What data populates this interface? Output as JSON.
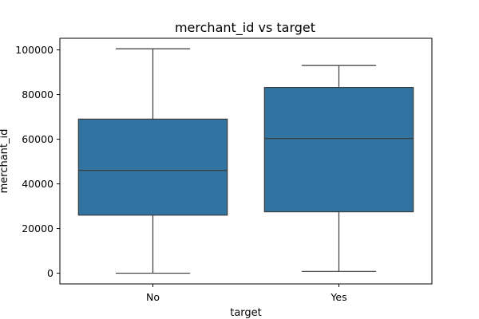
{
  "chart_data": {
    "type": "box",
    "title": "merchant_id vs target",
    "xlabel": "target",
    "ylabel": "merchant_id",
    "categories": [
      "No",
      "Yes"
    ],
    "yticks": [
      0,
      20000,
      40000,
      60000,
      80000,
      100000
    ],
    "ytick_labels": [
      "0",
      "20000",
      "40000",
      "60000",
      "80000",
      "100000"
    ],
    "ylim": [
      -4800,
      105200
    ],
    "grid": false,
    "legend": "none",
    "box_color": "#3274a1",
    "line_color": "#3a3a3a",
    "boxes": [
      {
        "category": "No",
        "whisker_low": 0,
        "q1": 26000,
        "median": 46000,
        "q3": 69000,
        "whisker_high": 100500
      },
      {
        "category": "Yes",
        "whisker_low": 800,
        "q1": 27500,
        "median": 60300,
        "q3": 83200,
        "whisker_high": 93000
      }
    ]
  }
}
